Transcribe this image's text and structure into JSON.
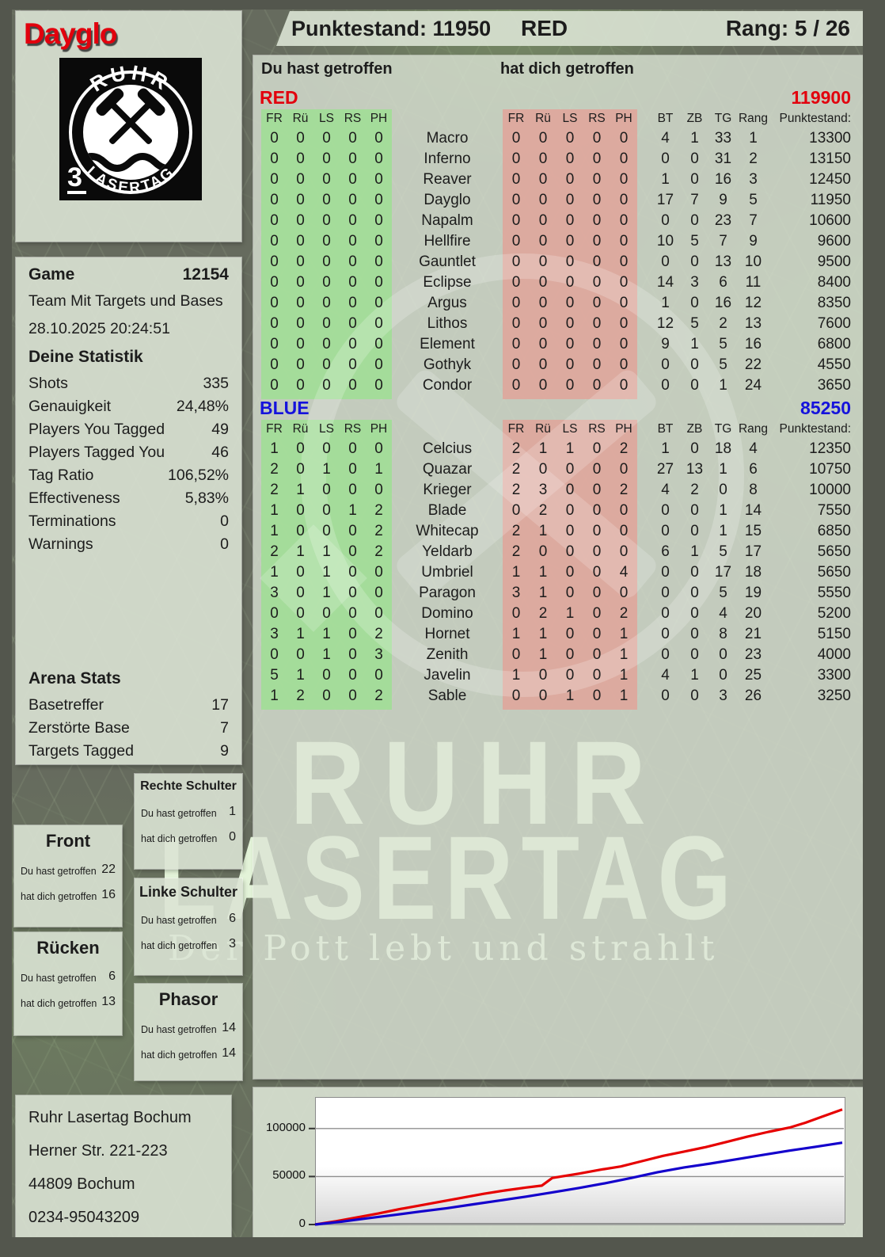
{
  "player": {
    "name": "Dayglo",
    "badge_number": "3",
    "logo_arc_top": "RUHR",
    "logo_arc_bottom": "LASERTAG"
  },
  "header": {
    "punktestand": "Punktestand: 11950",
    "team": "RED",
    "rang": "Rang: 5 / 26"
  },
  "columns": {
    "you_hit": "Du hast getroffen",
    "hit_you": "hat dich getroffen",
    "hit_cols": [
      "FR",
      "Rü",
      "LS",
      "RS",
      "PH"
    ],
    "bt": "BT",
    "zb": "ZB",
    "tg": "TG",
    "rang": "Rang",
    "punktestand": "Punktestand:"
  },
  "teams": [
    {
      "name": "RED",
      "color": "#e2000d",
      "total": "119900",
      "rows": [
        {
          "you": [
            0,
            0,
            0,
            0,
            0
          ],
          "name": "Macro",
          "them": [
            0,
            0,
            0,
            0,
            0
          ],
          "bt": 4,
          "zb": 1,
          "tg": 33,
          "rang": 1,
          "punkte": "13300"
        },
        {
          "you": [
            0,
            0,
            0,
            0,
            0
          ],
          "name": "Inferno",
          "them": [
            0,
            0,
            0,
            0,
            0
          ],
          "bt": 0,
          "zb": 0,
          "tg": 31,
          "rang": 2,
          "punkte": "13150"
        },
        {
          "you": [
            0,
            0,
            0,
            0,
            0
          ],
          "name": "Reaver",
          "them": [
            0,
            0,
            0,
            0,
            0
          ],
          "bt": 1,
          "zb": 0,
          "tg": 16,
          "rang": 3,
          "punkte": "12450"
        },
        {
          "you": [
            0,
            0,
            0,
            0,
            0
          ],
          "name": "Dayglo",
          "them": [
            0,
            0,
            0,
            0,
            0
          ],
          "bt": 17,
          "zb": 7,
          "tg": 9,
          "rang": 5,
          "punkte": "11950"
        },
        {
          "you": [
            0,
            0,
            0,
            0,
            0
          ],
          "name": "Napalm",
          "them": [
            0,
            0,
            0,
            0,
            0
          ],
          "bt": 0,
          "zb": 0,
          "tg": 23,
          "rang": 7,
          "punkte": "10600"
        },
        {
          "you": [
            0,
            0,
            0,
            0,
            0
          ],
          "name": "Hellfire",
          "them": [
            0,
            0,
            0,
            0,
            0
          ],
          "bt": 10,
          "zb": 5,
          "tg": 7,
          "rang": 9,
          "punkte": "9600"
        },
        {
          "you": [
            0,
            0,
            0,
            0,
            0
          ],
          "name": "Gauntlet",
          "them": [
            0,
            0,
            0,
            0,
            0
          ],
          "bt": 0,
          "zb": 0,
          "tg": 13,
          "rang": 10,
          "punkte": "9500"
        },
        {
          "you": [
            0,
            0,
            0,
            0,
            0
          ],
          "name": "Eclipse",
          "them": [
            0,
            0,
            0,
            0,
            0
          ],
          "bt": 14,
          "zb": 3,
          "tg": 6,
          "rang": 11,
          "punkte": "8400"
        },
        {
          "you": [
            0,
            0,
            0,
            0,
            0
          ],
          "name": "Argus",
          "them": [
            0,
            0,
            0,
            0,
            0
          ],
          "bt": 1,
          "zb": 0,
          "tg": 16,
          "rang": 12,
          "punkte": "8350"
        },
        {
          "you": [
            0,
            0,
            0,
            0,
            0
          ],
          "name": "Lithos",
          "them": [
            0,
            0,
            0,
            0,
            0
          ],
          "bt": 12,
          "zb": 5,
          "tg": 2,
          "rang": 13,
          "punkte": "7600"
        },
        {
          "you": [
            0,
            0,
            0,
            0,
            0
          ],
          "name": "Element",
          "them": [
            0,
            0,
            0,
            0,
            0
          ],
          "bt": 9,
          "zb": 1,
          "tg": 5,
          "rang": 16,
          "punkte": "6800"
        },
        {
          "you": [
            0,
            0,
            0,
            0,
            0
          ],
          "name": "Gothyk",
          "them": [
            0,
            0,
            0,
            0,
            0
          ],
          "bt": 0,
          "zb": 0,
          "tg": 5,
          "rang": 22,
          "punkte": "4550"
        },
        {
          "you": [
            0,
            0,
            0,
            0,
            0
          ],
          "name": "Condor",
          "them": [
            0,
            0,
            0,
            0,
            0
          ],
          "bt": 0,
          "zb": 0,
          "tg": 1,
          "rang": 24,
          "punkte": "3650"
        }
      ]
    },
    {
      "name": "BLUE",
      "color": "#1512dc",
      "total": "85250",
      "rows": [
        {
          "you": [
            1,
            0,
            0,
            0,
            0
          ],
          "name": "Celcius",
          "them": [
            2,
            1,
            1,
            0,
            2
          ],
          "bt": 1,
          "zb": 0,
          "tg": 18,
          "rang": 4,
          "punkte": "12350"
        },
        {
          "you": [
            2,
            0,
            1,
            0,
            1
          ],
          "name": "Quazar",
          "them": [
            2,
            0,
            0,
            0,
            0
          ],
          "bt": 27,
          "zb": 13,
          "tg": 1,
          "rang": 6,
          "punkte": "10750"
        },
        {
          "you": [
            2,
            1,
            0,
            0,
            0
          ],
          "name": "Krieger",
          "them": [
            2,
            3,
            0,
            0,
            2
          ],
          "bt": 4,
          "zb": 2,
          "tg": 0,
          "rang": 8,
          "punkte": "10000"
        },
        {
          "you": [
            1,
            0,
            0,
            1,
            2
          ],
          "name": "Blade",
          "them": [
            0,
            2,
            0,
            0,
            0
          ],
          "bt": 0,
          "zb": 0,
          "tg": 1,
          "rang": 14,
          "punkte": "7550"
        },
        {
          "you": [
            1,
            0,
            0,
            0,
            2
          ],
          "name": "Whitecap",
          "them": [
            2,
            1,
            0,
            0,
            0
          ],
          "bt": 0,
          "zb": 0,
          "tg": 1,
          "rang": 15,
          "punkte": "6850"
        },
        {
          "you": [
            2,
            1,
            1,
            0,
            2
          ],
          "name": "Yeldarb",
          "them": [
            2,
            0,
            0,
            0,
            0
          ],
          "bt": 6,
          "zb": 1,
          "tg": 5,
          "rang": 17,
          "punkte": "5650"
        },
        {
          "you": [
            1,
            0,
            1,
            0,
            0
          ],
          "name": "Umbriel",
          "them": [
            1,
            1,
            0,
            0,
            4
          ],
          "bt": 0,
          "zb": 0,
          "tg": 17,
          "rang": 18,
          "punkte": "5650"
        },
        {
          "you": [
            3,
            0,
            1,
            0,
            0
          ],
          "name": "Paragon",
          "them": [
            3,
            1,
            0,
            0,
            0
          ],
          "bt": 0,
          "zb": 0,
          "tg": 5,
          "rang": 19,
          "punkte": "5550"
        },
        {
          "you": [
            0,
            0,
            0,
            0,
            0
          ],
          "name": "Domino",
          "them": [
            0,
            2,
            1,
            0,
            2
          ],
          "bt": 0,
          "zb": 0,
          "tg": 4,
          "rang": 20,
          "punkte": "5200"
        },
        {
          "you": [
            3,
            1,
            1,
            0,
            2
          ],
          "name": "Hornet",
          "them": [
            1,
            1,
            0,
            0,
            1
          ],
          "bt": 0,
          "zb": 0,
          "tg": 8,
          "rang": 21,
          "punkte": "5150"
        },
        {
          "you": [
            0,
            0,
            1,
            0,
            3
          ],
          "name": "Zenith",
          "them": [
            0,
            1,
            0,
            0,
            1
          ],
          "bt": 0,
          "zb": 0,
          "tg": 0,
          "rang": 23,
          "punkte": "4000"
        },
        {
          "you": [
            5,
            1,
            0,
            0,
            0
          ],
          "name": "Javelin",
          "them": [
            1,
            0,
            0,
            0,
            1
          ],
          "bt": 4,
          "zb": 1,
          "tg": 0,
          "rang": 25,
          "punkte": "3300"
        },
        {
          "you": [
            1,
            2,
            0,
            0,
            2
          ],
          "name": "Sable",
          "them": [
            0,
            0,
            1,
            0,
            1
          ],
          "bt": 0,
          "zb": 0,
          "tg": 3,
          "rang": 26,
          "punkte": "3250"
        }
      ]
    }
  ],
  "game_info": {
    "label": "Game",
    "number": "12154",
    "mode": "Team Mit Targets und Bases",
    "datetime": "28.10.2025 20:24:51"
  },
  "statistik": {
    "heading": "Deine Statistik",
    "rows": [
      {
        "label": "Shots",
        "value": "335"
      },
      {
        "label": "Genauigkeit",
        "value": "24,48%"
      },
      {
        "label": "Players You Tagged",
        "value": "49"
      },
      {
        "label": "Players Tagged You",
        "value": "46"
      },
      {
        "label": "Tag Ratio",
        "value": "106,52%"
      },
      {
        "label": "Effectiveness",
        "value": "5,83%"
      },
      {
        "label": "Terminations",
        "value": "0"
      },
      {
        "label": "Warnings",
        "value": "0"
      }
    ]
  },
  "arena": {
    "heading": "Arena Stats",
    "rows": [
      {
        "label": "Basetreffer",
        "value": "17"
      },
      {
        "label": "Zerstörte Base",
        "value": "7"
      },
      {
        "label": "Targets Tagged",
        "value": "9"
      }
    ]
  },
  "bodypart_labels": {
    "you": "Du hast getroffen",
    "them": "hat dich getroffen"
  },
  "bodyparts": [
    {
      "title": "Rechte Schulter",
      "you": "1",
      "them": "0"
    },
    {
      "title": "Front",
      "you": "22",
      "them": "16"
    },
    {
      "title": "Linke Schulter",
      "you": "6",
      "them": "3"
    },
    {
      "title": "Rücken",
      "you": "6",
      "them": "13"
    },
    {
      "title": "Phasor",
      "you": "14",
      "them": "14"
    }
  ],
  "address": {
    "line1": "Ruhr Lasertag Bochum",
    "line2": "Herner Str. 221-223",
    "line3": "44809 Bochum",
    "line4": "0234-95043209"
  },
  "watermark": {
    "line1": "RUHR",
    "line2": "LASERTAG",
    "tagline": "Der Pott lebt und strahlt"
  },
  "chart_data": {
    "type": "line",
    "title": "",
    "xlabel": "",
    "ylabel": "",
    "ylim": [
      0,
      132000
    ],
    "grid": true,
    "legend_position": "none",
    "yticks": [
      {
        "value": 0,
        "label": "0"
      },
      {
        "value": 50000,
        "label": "50000"
      },
      {
        "value": 100000,
        "label": "100000"
      }
    ],
    "series": [
      {
        "name": "RED",
        "color": "#e60000",
        "final_score": 119900,
        "points": [
          [
            0,
            0
          ],
          [
            0.04,
            3500
          ],
          [
            0.08,
            7500
          ],
          [
            0.12,
            11500
          ],
          [
            0.16,
            16000
          ],
          [
            0.2,
            20000
          ],
          [
            0.24,
            24000
          ],
          [
            0.28,
            28000
          ],
          [
            0.32,
            32000
          ],
          [
            0.36,
            35500
          ],
          [
            0.4,
            38500
          ],
          [
            0.43,
            40500
          ],
          [
            0.45,
            48500
          ],
          [
            0.5,
            53000
          ],
          [
            0.54,
            57000
          ],
          [
            0.58,
            60500
          ],
          [
            0.62,
            66000
          ],
          [
            0.66,
            71500
          ],
          [
            0.7,
            76000
          ],
          [
            0.74,
            80500
          ],
          [
            0.78,
            86000
          ],
          [
            0.82,
            91500
          ],
          [
            0.86,
            96500
          ],
          [
            0.9,
            101000
          ],
          [
            0.93,
            106000
          ],
          [
            0.96,
            112000
          ],
          [
            1,
            119900
          ]
        ]
      },
      {
        "name": "BLUE",
        "color": "#1300cc",
        "final_score": 85250,
        "points": [
          [
            0,
            0
          ],
          [
            0.05,
            3000
          ],
          [
            0.1,
            6500
          ],
          [
            0.15,
            10000
          ],
          [
            0.2,
            13500
          ],
          [
            0.25,
            17000
          ],
          [
            0.3,
            21000
          ],
          [
            0.35,
            25000
          ],
          [
            0.4,
            29000
          ],
          [
            0.45,
            33500
          ],
          [
            0.5,
            38000
          ],
          [
            0.55,
            43000
          ],
          [
            0.6,
            48500
          ],
          [
            0.65,
            54500
          ],
          [
            0.7,
            59500
          ],
          [
            0.75,
            63500
          ],
          [
            0.8,
            68000
          ],
          [
            0.85,
            72500
          ],
          [
            0.9,
            77000
          ],
          [
            0.95,
            81000
          ],
          [
            1,
            85250
          ]
        ]
      }
    ]
  }
}
